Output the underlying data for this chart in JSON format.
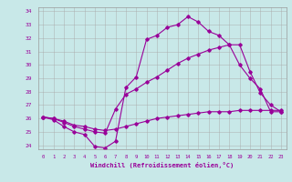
{
  "title": "",
  "xlabel": "Windchill (Refroidissement éolien,°C)",
  "xlim": [
    -0.5,
    23.5
  ],
  "ylim": [
    23.7,
    34.3
  ],
  "xticks": [
    0,
    1,
    2,
    3,
    4,
    5,
    6,
    7,
    8,
    9,
    10,
    11,
    12,
    13,
    14,
    15,
    16,
    17,
    18,
    19,
    20,
    21,
    22,
    23
  ],
  "yticks": [
    24,
    25,
    26,
    27,
    28,
    29,
    30,
    31,
    32,
    33,
    34
  ],
  "bg_color": "#c8e8e8",
  "line_color": "#990099",
  "line1_x": [
    0,
    1,
    2,
    3,
    4,
    5,
    6,
    7,
    8,
    9,
    10,
    11,
    12,
    13,
    14,
    15,
    16,
    17,
    18,
    19,
    20,
    21,
    22,
    23
  ],
  "line1_y": [
    26.1,
    25.9,
    25.4,
    25.0,
    24.8,
    23.9,
    23.8,
    24.3,
    28.3,
    29.1,
    31.9,
    32.2,
    32.8,
    33.0,
    33.6,
    33.2,
    32.5,
    32.2,
    31.5,
    30.0,
    29.0,
    28.2,
    26.5,
    26.5
  ],
  "line2_x": [
    0,
    1,
    2,
    3,
    4,
    5,
    6,
    7,
    8,
    9,
    10,
    11,
    12,
    13,
    14,
    15,
    16,
    17,
    18,
    19,
    20,
    21,
    22,
    23
  ],
  "line2_y": [
    26.1,
    26.0,
    25.8,
    25.5,
    25.4,
    25.2,
    25.1,
    25.2,
    25.4,
    25.6,
    25.8,
    26.0,
    26.1,
    26.2,
    26.3,
    26.4,
    26.5,
    26.5,
    26.5,
    26.6,
    26.6,
    26.6,
    26.6,
    26.6
  ],
  "line3_x": [
    0,
    1,
    2,
    3,
    4,
    5,
    6,
    7,
    8,
    9,
    10,
    11,
    12,
    13,
    14,
    15,
    16,
    17,
    18,
    19,
    20,
    21,
    22,
    23
  ],
  "line3_y": [
    26.1,
    26.0,
    25.7,
    25.4,
    25.2,
    25.0,
    24.9,
    26.7,
    27.8,
    28.2,
    28.7,
    29.1,
    29.6,
    30.1,
    30.5,
    30.8,
    31.1,
    31.3,
    31.5,
    31.5,
    29.5,
    27.9,
    27.0,
    26.5
  ]
}
